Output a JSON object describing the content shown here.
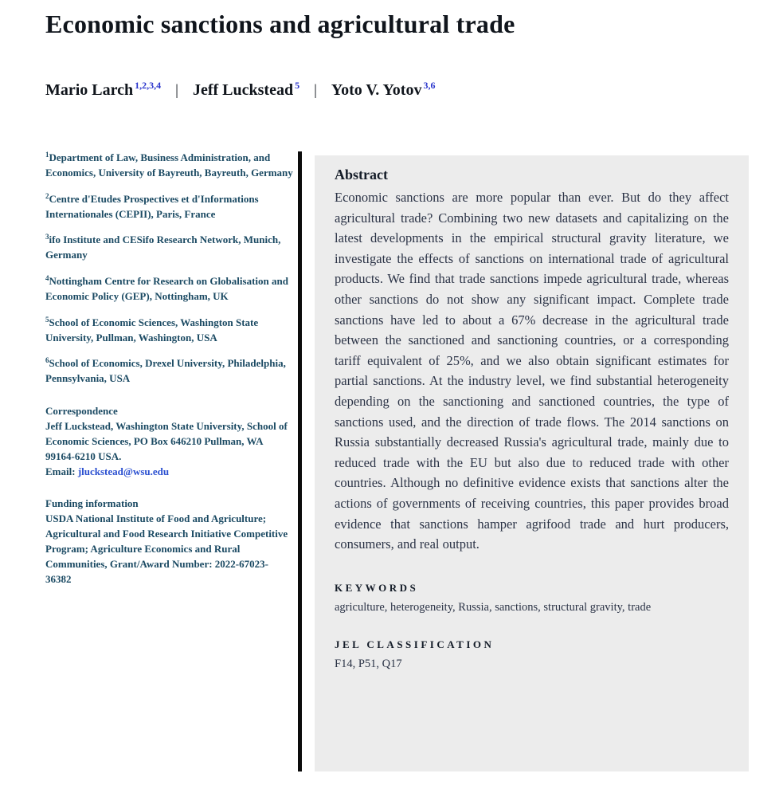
{
  "title": "Economic sanctions and agricultural trade",
  "author_separator": "|",
  "authors": [
    {
      "name": "Mario Larch",
      "sup": "1,2,3,4"
    },
    {
      "name": "Jeff Luckstead",
      "sup": "5"
    },
    {
      "name": "Yoto V. Yotov",
      "sup": "3,6"
    }
  ],
  "affiliations": [
    {
      "sup": "1",
      "text": "Department of Law, Business Administration, and Economics, University of Bayreuth, Bayreuth, Germany"
    },
    {
      "sup": "2",
      "text": "Centre d'Etudes Prospectives et d'Informations Internationales (CEPII), Paris, France"
    },
    {
      "sup": "3",
      "text": "ifo Institute and CESifo Research Network, Munich, Germany"
    },
    {
      "sup": "4",
      "text": "Nottingham Centre for Research on Globalisation and Economic Policy (GEP), Nottingham, UK"
    },
    {
      "sup": "5",
      "text": "School of Economic Sciences, Washington State University, Pullman, Washington, USA"
    },
    {
      "sup": "6",
      "text": "School of Economics, Drexel University, Philadelphia, Pennsylvania, USA"
    }
  ],
  "correspondence": {
    "heading": "Correspondence",
    "text": "Jeff Luckstead, Washington State University, School of Economic Sciences, PO Box 646210 Pullman, WA 99164-6210 USA.",
    "email_label": "Email: ",
    "email": "jluckstead@wsu.edu"
  },
  "funding": {
    "heading": "Funding information",
    "text": "USDA National Institute of Food and Agriculture; Agricultural and Food Research Initiative Competitive Program; Agriculture Economics and Rural Communities, Grant/Award Number: 2022-67023-36382"
  },
  "abstract": {
    "heading": "Abstract",
    "text": "Economic sanctions are more popular than ever. But do they affect agricultural trade? Combining two new datasets and capitalizing on the latest developments in the empirical structural gravity literature, we investigate the effects of sanctions on international trade of agricultural products. We find that trade sanctions impede agricultural trade, whereas other sanctions do not show any significant impact. Complete trade sanctions have led to about a 67% decrease in the agricultural trade between the sanctioned and sanctioning countries, or a corresponding tariff equivalent of 25%, and we also obtain significant estimates for partial sanctions. At the industry level, we find substantial heterogeneity depending on the sanctioning and sanctioned countries, the type of sanctions used, and the direction of trade flows. The 2014 sanctions on Russia substantially decreased Russia's agricultural trade, mainly due to reduced trade with the EU but also due to reduced trade with other countries. Although no definitive evidence exists that sanctions alter the actions of governments of receiving countries, this paper provides broad evidence that sanctions hamper agrifood trade and hurt producers, consumers, and real output."
  },
  "keywords": {
    "heading": "KEYWORDS",
    "text": "agriculture, heterogeneity, Russia, sanctions, structural gravity, trade"
  },
  "jel": {
    "heading": "JEL CLASSIFICATION",
    "text": "F14, P51, Q17"
  },
  "colors": {
    "left_text": "#1b4a63",
    "body_text": "#2b3346",
    "superscript_blue": "#2a35cc",
    "link_blue": "#2a4fd0",
    "abstract_background": "#ececec",
    "divider_black": "#0c0c0c"
  }
}
